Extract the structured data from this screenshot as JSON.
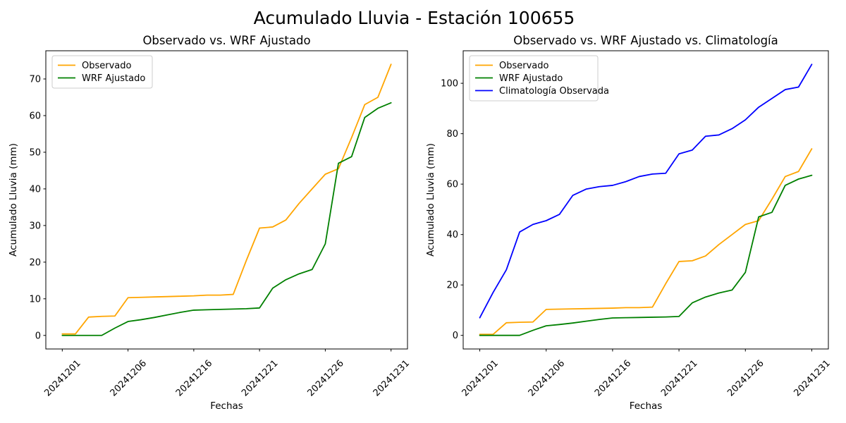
{
  "figure": {
    "title": "Acumulado Lluvia - Estación 100655",
    "background": "#ffffff"
  },
  "chart_data": [
    {
      "id": "left",
      "type": "line",
      "title": "Observado vs. WRF Ajustado",
      "xlabel": "Fechas",
      "ylabel": "Acumulado Lluvia (mm)",
      "grid": false,
      "legend_position": "upper-left",
      "xlim": [
        -1.25,
        26.25
      ],
      "ylim": [
        -3.7,
        77.7
      ],
      "yticks": [
        0,
        10,
        20,
        30,
        40,
        50,
        60,
        70
      ],
      "x_tick_positions": [
        0,
        5,
        10,
        15,
        20,
        25
      ],
      "x_tick_labels": [
        "20241201",
        "20241206",
        "20241216",
        "20241221",
        "20241226",
        "20241231"
      ],
      "series": [
        {
          "name": "Observado",
          "color": "#FFA500",
          "values": [
            0.4,
            0.4,
            5,
            5.2,
            5.3,
            10.3,
            10.4,
            10.5,
            10.6,
            10.7,
            10.8,
            11,
            11,
            11.2,
            20.5,
            29.3,
            29.6,
            31.5,
            36,
            40,
            44,
            45.5,
            54,
            63,
            65,
            74
          ]
        },
        {
          "name": "WRF Ajustado",
          "color": "#008000",
          "values": [
            0,
            0,
            0,
            0,
            2,
            3.8,
            4.3,
            4.9,
            5.6,
            6.3,
            6.9,
            7,
            7.1,
            7.2,
            7.3,
            7.5,
            12.9,
            15.2,
            16.8,
            18,
            25,
            47,
            48.8,
            59.5,
            62,
            63.5
          ]
        }
      ]
    },
    {
      "id": "right",
      "type": "line",
      "title": "Observado vs. WRF Ajustado vs. Climatología",
      "xlabel": "Fechas",
      "ylabel": "Acumulado Lluvia (mm)",
      "grid": false,
      "legend_position": "upper-left",
      "xlim": [
        -1.25,
        26.25
      ],
      "ylim": [
        -5.4,
        112.9
      ],
      "yticks": [
        0,
        20,
        40,
        60,
        80,
        100
      ],
      "x_tick_positions": [
        0,
        5,
        10,
        15,
        20,
        25
      ],
      "x_tick_labels": [
        "20241201",
        "20241206",
        "20241216",
        "20241221",
        "20241226",
        "20241231"
      ],
      "series": [
        {
          "name": "Observado",
          "color": "#FFA500",
          "values": [
            0.4,
            0.4,
            5,
            5.2,
            5.3,
            10.3,
            10.4,
            10.5,
            10.6,
            10.7,
            10.8,
            11,
            11,
            11.2,
            20.5,
            29.3,
            29.6,
            31.5,
            36,
            40,
            44,
            45.5,
            54,
            63,
            65,
            74
          ]
        },
        {
          "name": "WRF Ajustado",
          "color": "#008000",
          "values": [
            0,
            0,
            0,
            0,
            2,
            3.8,
            4.3,
            4.9,
            5.6,
            6.3,
            6.9,
            7,
            7.1,
            7.2,
            7.3,
            7.5,
            12.9,
            15.2,
            16.8,
            18,
            25,
            47,
            48.8,
            59.5,
            62,
            63.5
          ]
        },
        {
          "name": "Climatología Observada",
          "color": "#0000FF",
          "values": [
            7,
            17,
            26,
            41,
            44,
            45.5,
            48,
            55.5,
            58,
            59,
            59.5,
            61,
            63,
            64,
            64.3,
            72,
            73.5,
            79,
            79.5,
            82,
            85.5,
            90.5,
            94,
            97.5,
            98.5,
            107.5
          ]
        }
      ]
    }
  ]
}
